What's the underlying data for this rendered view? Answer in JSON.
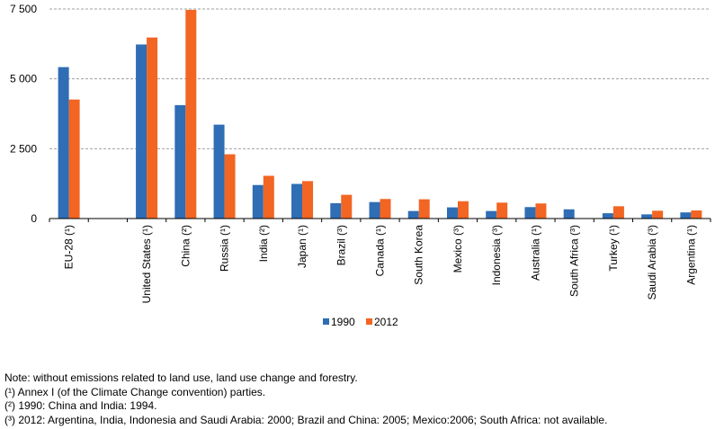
{
  "chart_data": {
    "type": "bar",
    "categories": [
      "EU-28 (¹)",
      "",
      "United States (¹)",
      "China (²)",
      "Russia (¹)",
      "India (²)",
      "Japan (¹)",
      "Brazil (³)",
      "Canada (¹)",
      "South Korea",
      "Mexico (³)",
      "Indonesia (³)",
      "Australia (¹)",
      "South Africa (³)",
      "Turkey (¹)",
      "Saudi Arabia (³)",
      "Argentina (¹)"
    ],
    "series": [
      {
        "name": "1990",
        "color": "#2f6db5",
        "values": [
          5420,
          null,
          6230,
          4060,
          3360,
          1200,
          1240,
          550,
          590,
          270,
          400,
          270,
          410,
          330,
          190,
          150,
          220
        ]
      },
      {
        "name": "2012",
        "color": "#f26522",
        "values": [
          4260,
          null,
          6480,
          7470,
          2300,
          1530,
          1340,
          850,
          700,
          690,
          620,
          570,
          540,
          null,
          440,
          280,
          290
        ]
      }
    ],
    "y_ticks": [
      "0",
      "2 500",
      "5 000",
      "7 500"
    ],
    "y_tick_values": [
      0,
      2500,
      5000,
      7500
    ],
    "ylim": [
      0,
      7500
    ],
    "grid": true,
    "legend_placement": "bottom-center"
  },
  "notes": [
    "Note: without emissions related to land use, land use change and forestry.",
    "(¹) Annex I (of the Climate Change convention) parties.",
    "(²) 1990: China and India: 1994.",
    "(³) 2012: Argentina, India, Indonesia and Saudi Arabia: 2000; Brazil and China: 2005; Mexico:2006; South Africa: not available."
  ]
}
